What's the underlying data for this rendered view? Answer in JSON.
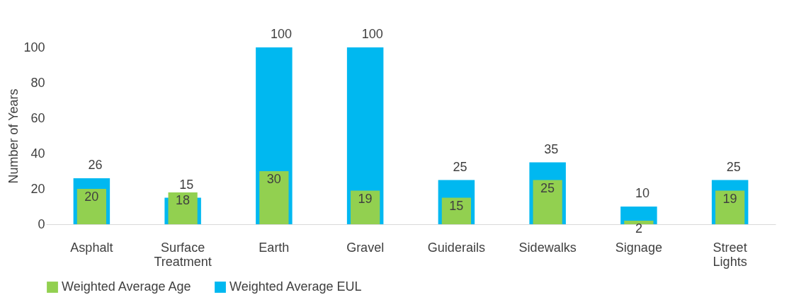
{
  "chart_data": {
    "type": "bar",
    "ylabel": "Number of Years",
    "categories": [
      "Asphalt",
      "Surface Treatment",
      "Earth",
      "Gravel",
      "Guiderails",
      "Sidewalks",
      "Signage",
      "Street Lights"
    ],
    "series": [
      {
        "name": "Weighted Average Age",
        "color": "#92d050",
        "values": [
          20,
          18,
          30,
          19,
          15,
          25,
          2,
          19
        ]
      },
      {
        "name": "Weighted Average EUL",
        "color": "#00b8f0",
        "values": [
          26,
          15,
          100,
          100,
          25,
          35,
          10,
          25
        ]
      }
    ],
    "ylim": [
      0,
      100
    ],
    "yticks": [
      0,
      20,
      40,
      60,
      80,
      100
    ],
    "grid": false,
    "legend": "bottom",
    "data_labels": true
  }
}
